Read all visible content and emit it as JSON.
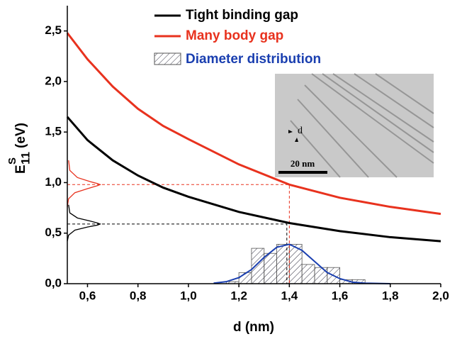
{
  "chart_data": {
    "type": "line",
    "xlabel": "d (nm)",
    "ylabel": {
      "main": "E",
      "sub": "11",
      "sup": "S",
      "unit": "(eV)"
    },
    "xlim": [
      0.52,
      2.0
    ],
    "ylim": [
      0,
      2.75
    ],
    "xticks": [
      {
        "value": 0.6,
        "label": "0,6"
      },
      {
        "value": 0.8,
        "label": "0,8"
      },
      {
        "value": 1.0,
        "label": "1,0"
      },
      {
        "value": 1.2,
        "label": "1,2"
      },
      {
        "value": 1.4,
        "label": "1,4"
      },
      {
        "value": 1.6,
        "label": "1,6"
      },
      {
        "value": 1.8,
        "label": "1,8"
      },
      {
        "value": 2.0,
        "label": "2,0"
      }
    ],
    "yticks": [
      {
        "value": 0,
        "label": "0,0"
      },
      {
        "value": 0.5,
        "label": "0,5"
      },
      {
        "value": 1.0,
        "label": "1,0"
      },
      {
        "value": 1.5,
        "label": "1,5"
      },
      {
        "value": 2.0,
        "label": "2,0"
      },
      {
        "value": 2.5,
        "label": "2,5"
      }
    ],
    "series": [
      {
        "name": "Tight binding gap",
        "color": "#000000",
        "x": [
          0.52,
          0.6,
          0.7,
          0.8,
          0.9,
          1.0,
          1.2,
          1.4,
          1.6,
          1.8,
          2.0
        ],
        "values": [
          1.65,
          1.42,
          1.22,
          1.07,
          0.95,
          0.86,
          0.71,
          0.6,
          0.52,
          0.46,
          0.42
        ]
      },
      {
        "name": "Many body gap",
        "color": "#e8321e",
        "x": [
          0.52,
          0.6,
          0.7,
          0.8,
          0.9,
          1.0,
          1.2,
          1.4,
          1.6,
          1.8,
          2.0
        ],
        "values": [
          2.48,
          2.22,
          1.95,
          1.73,
          1.56,
          1.43,
          1.18,
          0.98,
          0.85,
          0.76,
          0.69
        ]
      }
    ],
    "projections": [
      {
        "color": "#000000",
        "x": [
          0.525,
          0.53,
          0.56,
          0.61,
          0.64,
          0.65,
          0.64,
          0.6,
          0.55,
          0.525,
          0.52
        ],
        "values": [
          0.78,
          0.7,
          0.65,
          0.62,
          0.6,
          0.59,
          0.58,
          0.56,
          0.53,
          0.48,
          0.42
        ]
      },
      {
        "color": "#e8321e",
        "x": [
          0.525,
          0.53,
          0.56,
          0.61,
          0.64,
          0.65,
          0.64,
          0.6,
          0.55,
          0.525,
          0.52
        ],
        "values": [
          1.22,
          1.12,
          1.05,
          1.01,
          0.99,
          0.98,
          0.97,
          0.94,
          0.9,
          0.84,
          0.76
        ]
      }
    ],
    "histogram": {
      "name": "Diameter distribution",
      "color": "#1a3fb0",
      "bins": [
        1.15,
        1.2,
        1.25,
        1.3,
        1.35,
        1.4,
        1.45,
        1.5,
        1.55,
        1.6,
        1.65,
        1.7
      ],
      "counts": [
        0.02,
        0.11,
        0.35,
        0.3,
        0.39,
        0.39,
        0.19,
        0.16,
        0.16,
        0.04,
        0.04
      ]
    },
    "fit": {
      "color": "#1a3fb0",
      "x": [
        1.1,
        1.15,
        1.2,
        1.25,
        1.3,
        1.35,
        1.4,
        1.45,
        1.5,
        1.55,
        1.6,
        1.65,
        1.7,
        1.8
      ],
      "values": [
        0.005,
        0.02,
        0.06,
        0.14,
        0.26,
        0.36,
        0.39,
        0.33,
        0.22,
        0.11,
        0.05,
        0.015,
        0.005,
        0
      ]
    },
    "guides": [
      {
        "x": 1.4,
        "y": 0.98,
        "color": "#e8321e"
      },
      {
        "x": 1.39,
        "y": 0.59,
        "color": "#000000"
      }
    ],
    "inset": {
      "label": "d",
      "scale": "20 nm"
    }
  }
}
